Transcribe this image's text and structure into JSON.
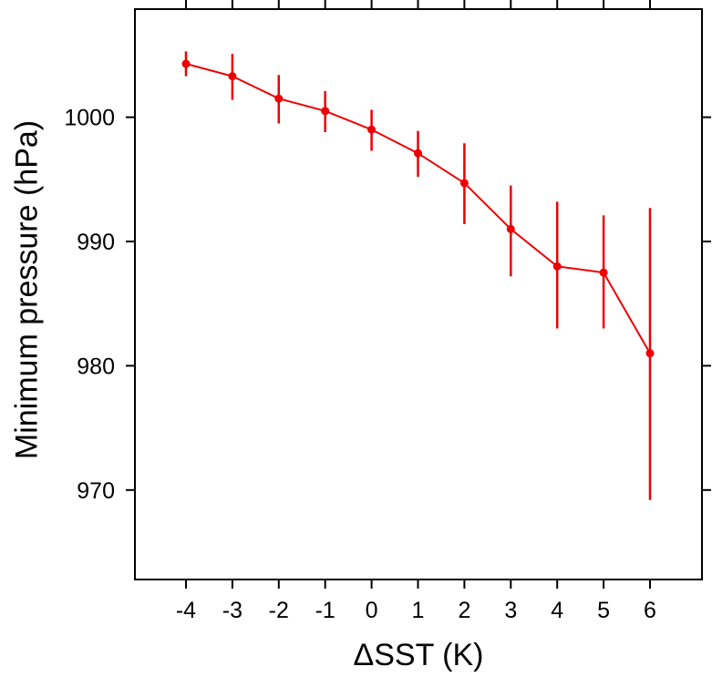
{
  "chart_data": {
    "type": "line",
    "title": "",
    "xlabel": "ΔSST (K)",
    "ylabel": "Minimum pressure (hPa)",
    "x": [
      -4,
      -3,
      -2,
      -1,
      0,
      1,
      2,
      3,
      4,
      5,
      6
    ],
    "series": [
      {
        "name": "minimum-pressure",
        "values": [
          1004.3,
          1003.3,
          1001.5,
          1000.5,
          999.0,
          997.1,
          994.7,
          991.0,
          988.0,
          987.5,
          981.0
        ],
        "error_low": [
          1003.3,
          1001.4,
          999.5,
          998.8,
          997.3,
          995.2,
          991.4,
          987.2,
          983.0,
          983.0,
          969.2
        ],
        "error_high": [
          1005.3,
          1005.1,
          1003.4,
          1002.1,
          1000.6,
          998.9,
          997.9,
          994.5,
          993.2,
          992.1,
          992.7
        ]
      }
    ],
    "xlim": [
      -5.1,
      7.12
    ],
    "ylim": [
      962.8,
      1008.7
    ],
    "x_ticks": [
      -4,
      -3,
      -2,
      -1,
      0,
      1,
      2,
      3,
      4,
      5,
      6
    ],
    "x_tick_labels": [
      "-4",
      "-3",
      "-2",
      "-1",
      "0",
      "1",
      "2",
      "3",
      "4",
      "5",
      "6"
    ],
    "y_ticks": [
      970,
      980,
      990,
      1000
    ],
    "y_tick_labels": [
      "970",
      "980",
      "990",
      "1000"
    ],
    "grid": false,
    "legend": "none",
    "line_color": "#ee0000",
    "frame_color": "#000000",
    "marker": "filled-circle",
    "error_bar_caps": false
  }
}
